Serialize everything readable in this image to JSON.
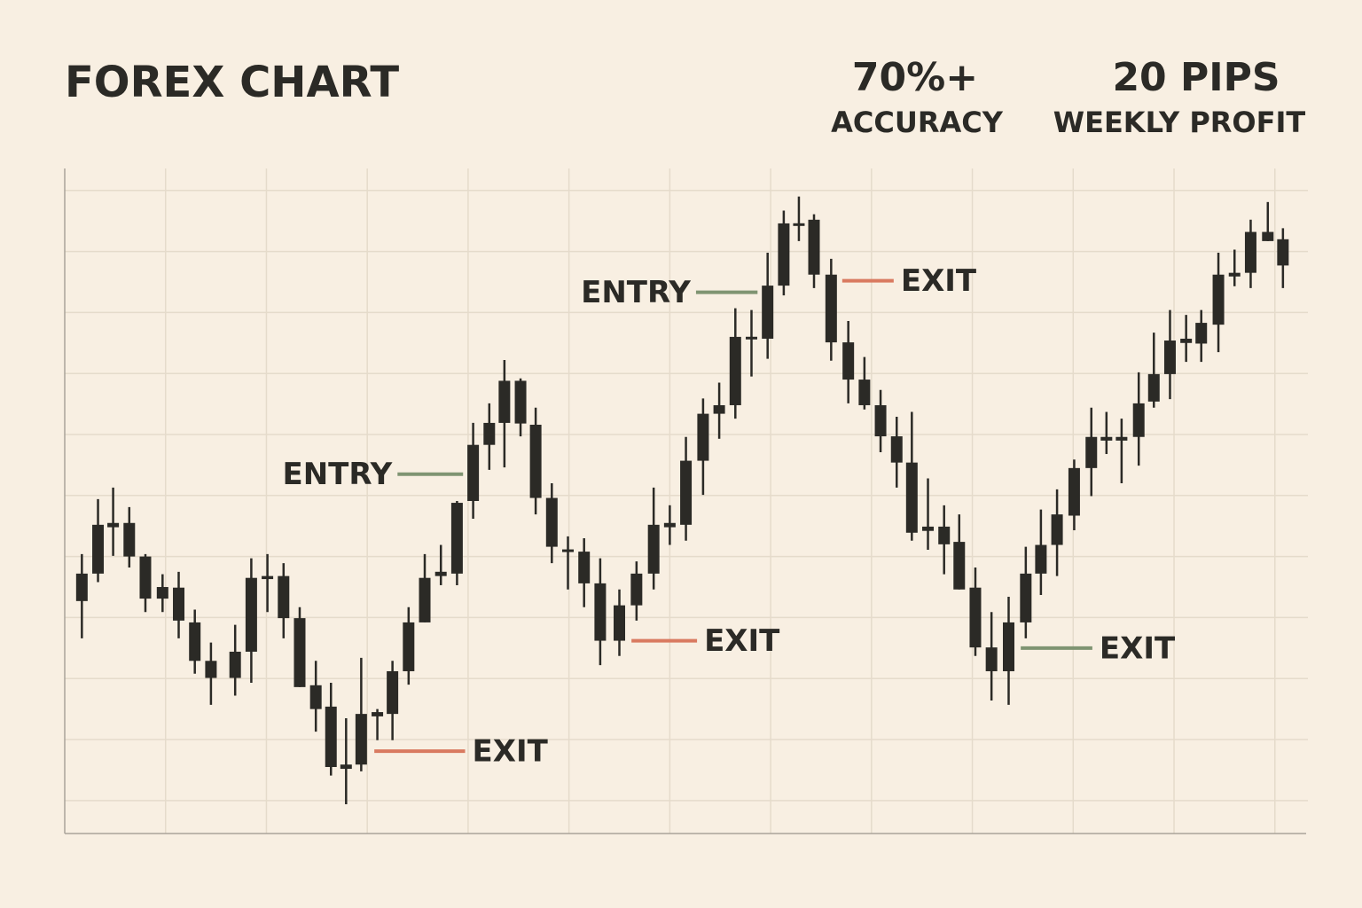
{
  "chart_data": {
    "type": "candlestick",
    "title": "FOREX CHART",
    "stats": [
      {
        "value": "70%+",
        "label": "ACCURACY"
      },
      {
        "value": "20 PIPS",
        "label": "WEEKLY PROFIT"
      }
    ],
    "color": "#2b2a26",
    "grid": true,
    "grid_color": "#e5dbcb",
    "background": "#f8efe2",
    "xlim": [
      0,
      12.31
    ],
    "xticks": [
      1,
      2,
      3,
      4,
      5,
      6,
      7,
      8,
      9,
      10,
      11,
      12
    ],
    "ylim": [
      4.6,
      113.6
    ],
    "yticks": [
      10,
      20,
      30,
      40,
      50,
      60,
      70,
      80,
      90,
      100,
      110
    ],
    "x": [
      0.17,
      0.33,
      0.48,
      0.64,
      0.8,
      0.97,
      1.13,
      1.29,
      1.45,
      1.69,
      1.85,
      2.01,
      2.17,
      2.33,
      2.49,
      2.64,
      2.79,
      2.94,
      3.1,
      3.25,
      3.41,
      3.57,
      3.73,
      3.89,
      4.05,
      4.21,
      4.36,
      4.52,
      4.67,
      4.83,
      4.99,
      5.15,
      5.31,
      5.5,
      5.67,
      5.84,
      6.0,
      6.16,
      6.33,
      6.49,
      6.65,
      6.81,
      6.97,
      7.13,
      7.28,
      7.43,
      7.6,
      7.77,
      7.93,
      8.09,
      8.25,
      8.4,
      8.56,
      8.72,
      8.87,
      9.03,
      9.19,
      9.36,
      9.53,
      9.68,
      9.84,
      10.01,
      10.18,
      10.33,
      10.48,
      10.65,
      10.8,
      10.96,
      11.12,
      11.27,
      11.44,
      11.6,
      11.76,
      11.93,
      12.08
    ],
    "open": [
      42.7,
      47.2,
      55.5,
      55.5,
      50.0,
      45.0,
      44.9,
      39.2,
      32.9,
      30.1,
      34.4,
      46.8,
      46.8,
      39.9,
      28.9,
      25.4,
      15.9,
      15.9,
      24.5,
      24.2,
      31.2,
      39.2,
      47.5,
      47.2,
      59.1,
      68.3,
      71.9,
      78.8,
      71.6,
      59.6,
      51.1,
      50.8,
      45.6,
      36.2,
      42.0,
      47.2,
      55.5,
      55.2,
      65.7,
      73.4,
      74.8,
      86.0,
      85.7,
      94.4,
      104.6,
      105.2,
      96.2,
      85.1,
      79.0,
      74.8,
      69.7,
      65.4,
      54.9,
      54.9,
      52.4,
      44.9,
      35.1,
      31.2,
      39.2,
      47.2,
      51.9,
      56.7,
      64.5,
      69.6,
      69.6,
      69.6,
      75.4,
      79.9,
      85.7,
      84.9,
      88.0,
      96.5,
      96.5,
      103.2,
      102.0
    ],
    "high": [
      50.4,
      59.4,
      61.3,
      58.1,
      50.4,
      47.1,
      47.5,
      41.3,
      35.9,
      38.8,
      49.7,
      50.4,
      48.9,
      41.7,
      32.9,
      29.3,
      23.5,
      33.4,
      25.0,
      32.9,
      41.7,
      50.4,
      51.9,
      59.1,
      71.9,
      75.1,
      82.2,
      79.2,
      74.4,
      62.0,
      53.3,
      53.0,
      49.7,
      44.6,
      49.2,
      61.3,
      58.4,
      69.6,
      75.9,
      78.5,
      90.7,
      90.4,
      99.8,
      106.7,
      109.0,
      106.1,
      98.8,
      88.6,
      82.7,
      77.3,
      72.9,
      73.7,
      62.8,
      58.4,
      56.9,
      48.2,
      40.9,
      43.4,
      51.6,
      57.7,
      61.0,
      65.9,
      74.4,
      73.7,
      72.6,
      80.2,
      86.7,
      90.4,
      89.6,
      90.4,
      99.8,
      100.3,
      105.2,
      108.1,
      103.8
    ],
    "low": [
      36.6,
      45.8,
      50.1,
      48.2,
      40.9,
      40.9,
      36.6,
      30.8,
      25.7,
      27.2,
      29.3,
      40.9,
      36.6,
      28.6,
      21.3,
      14.1,
      9.4,
      14.8,
      19.9,
      19.9,
      29.0,
      39.2,
      45.3,
      45.3,
      56.2,
      64.2,
      64.6,
      69.7,
      56.9,
      48.9,
      44.6,
      41.7,
      32.2,
      33.7,
      39.5,
      44.6,
      51.9,
      52.6,
      60.1,
      69.3,
      72.6,
      79.5,
      82.4,
      92.8,
      101.7,
      94.0,
      82.1,
      75.1,
      74.1,
      67.1,
      61.3,
      52.6,
      51.1,
      47.1,
      44.6,
      33.7,
      26.4,
      25.7,
      36.6,
      43.7,
      46.8,
      54.3,
      59.9,
      66.8,
      62.0,
      64.9,
      74.4,
      75.8,
      81.9,
      81.9,
      83.5,
      94.3,
      94.0,
      101.7,
      94.0
    ],
    "close": [
      47.2,
      55.2,
      54.8,
      50.0,
      43.1,
      43.1,
      39.5,
      32.9,
      30.1,
      34.4,
      46.5,
      46.3,
      39.9,
      28.6,
      25.0,
      15.5,
      15.2,
      24.2,
      23.8,
      31.2,
      39.2,
      46.5,
      46.8,
      58.8,
      68.3,
      71.9,
      78.8,
      71.8,
      59.6,
      51.6,
      50.8,
      45.6,
      36.2,
      42.0,
      47.2,
      55.2,
      54.8,
      65.7,
      73.4,
      74.8,
      86.0,
      85.6,
      94.4,
      104.6,
      104.2,
      96.2,
      85.1,
      79.0,
      74.8,
      69.7,
      65.4,
      53.9,
      54.2,
      52.0,
      44.6,
      35.1,
      31.2,
      39.2,
      47.2,
      51.9,
      56.9,
      64.5,
      69.6,
      69.0,
      69.0,
      75.1,
      79.9,
      85.4,
      85.0,
      88.3,
      96.2,
      95.9,
      103.2,
      101.7,
      97.7
    ],
    "annotations": [
      {
        "text": "ENTRY",
        "y": 63.5,
        "x": [
          3.3,
          3.95
        ],
        "color": "#7f9472",
        "label_side": "left"
      },
      {
        "text": "EXIT",
        "y": 18.1,
        "x": [
          3.07,
          3.97
        ],
        "color": "#d97a60",
        "label_side": "right"
      },
      {
        "text": "ENTRY",
        "y": 93.3,
        "x": [
          6.26,
          6.87
        ],
        "color": "#7f9472",
        "label_side": "left"
      },
      {
        "text": "EXIT",
        "y": 36.2,
        "x": [
          5.62,
          6.27
        ],
        "color": "#d97a60",
        "label_side": "right"
      },
      {
        "text": "EXIT",
        "y": 95.2,
        "x": [
          7.71,
          8.22
        ],
        "color": "#d97a60",
        "label_side": "right"
      },
      {
        "text": "EXIT",
        "y": 35.0,
        "x": [
          9.48,
          10.19
        ],
        "color": "#7f9472",
        "label_side": "right"
      }
    ]
  }
}
